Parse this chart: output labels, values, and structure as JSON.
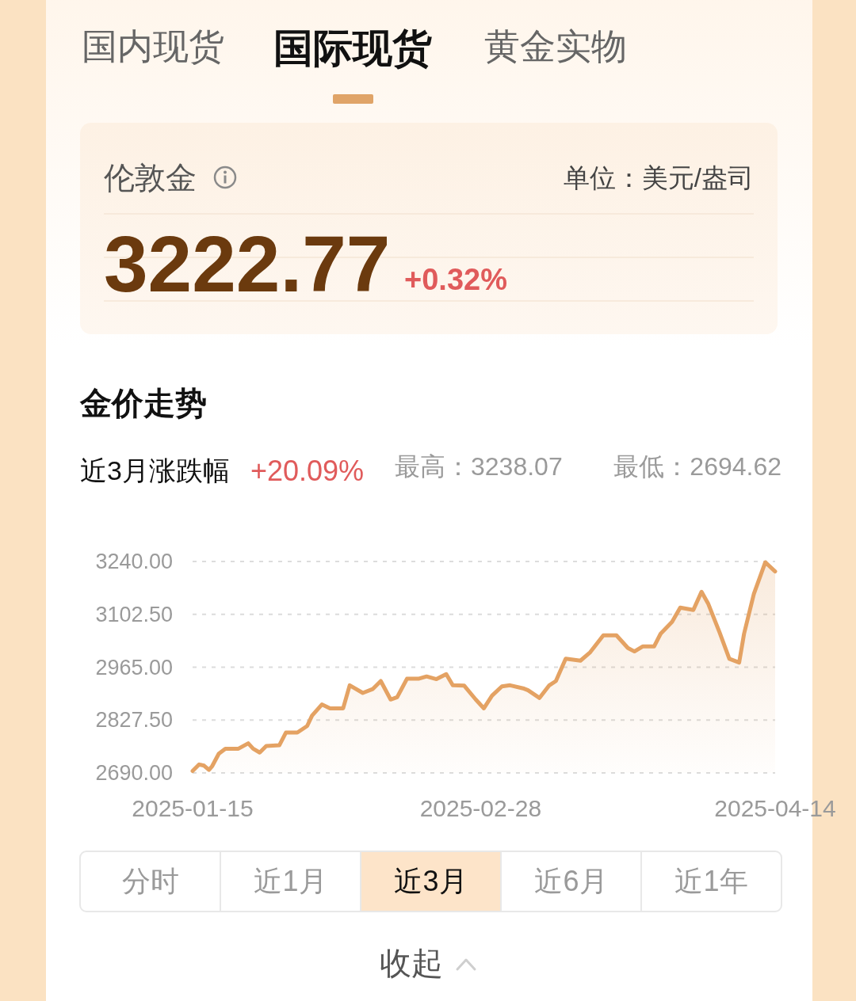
{
  "chart_data": {
    "type": "area",
    "title": "金价走势",
    "x": [
      "2025-01-15T00:00",
      "2025-01-16T00:00",
      "2025-01-16T18:00",
      "2025-01-17T12:00",
      "2025-01-18T00:00",
      "2025-01-19T00:00",
      "2025-01-20T00:00",
      "2025-01-22T00:00",
      "2025-01-23T12:00",
      "2025-01-24T06:00",
      "2025-01-25T06:00",
      "2025-01-26T06:00",
      "2025-01-28T06:00",
      "2025-01-29T06:00",
      "2025-01-31T00:00",
      "2025-02-01T12:00",
      "2025-02-02T06:00",
      "2025-02-03T18:00",
      "2025-02-05T00:00",
      "2025-02-07T00:00",
      "2025-02-08T00:00",
      "2025-02-10T00:00",
      "2025-02-11T12:00",
      "2025-02-12T18:00",
      "2025-02-14T06:00",
      "2025-02-15T06:00",
      "2025-02-16T18:00",
      "2025-02-18T12:00",
      "2025-02-19T18:00",
      "2025-02-21T06:00",
      "2025-02-22T18:00",
      "2025-02-23T18:00",
      "2025-02-25T12:00",
      "2025-02-27T06:00",
      "2025-02-28T12:00",
      "2025-03-01T18:00",
      "2025-03-03T06:00",
      "2025-03-04T12:00",
      "2025-03-06T12:00",
      "2025-03-07T06:00",
      "2025-03-09T00:00",
      "2025-03-10T12:00",
      "2025-03-11T12:00",
      "2025-03-13T00:00",
      "2025-03-15T06:00",
      "2025-03-16T18:00",
      "2025-03-18T18:00",
      "2025-03-20T18:00",
      "2025-03-22T12:00",
      "2025-03-23T12:00",
      "2025-03-24T18:00",
      "2025-03-26T12:00",
      "2025-03-27T12:00",
      "2025-03-29T06:00",
      "2025-03-30T12:00",
      "2025-04-01T12:00",
      "2025-04-02T18:00",
      "2025-04-03T18:00",
      "2025-04-05T12:00",
      "2025-04-07T00:00",
      "2025-04-08T12:00",
      "2025-04-09T06:00",
      "2025-04-10T18:00",
      "2025-04-12T12:00",
      "2025-04-14T00:00"
    ],
    "values": [
      2695,
      2712,
      2709,
      2698,
      2708,
      2740,
      2753,
      2753,
      2767,
      2753,
      2743,
      2760,
      2762,
      2795,
      2795,
      2812,
      2839,
      2868,
      2858,
      2858,
      2918,
      2898,
      2908,
      2929,
      2881,
      2887,
      2935,
      2935,
      2941,
      2934,
      2947,
      2918,
      2917,
      2881,
      2858,
      2891,
      2915,
      2918,
      2910,
      2905,
      2885,
      2918,
      2929,
      2987,
      2982,
      3004,
      3048,
      3048,
      3015,
      3006,
      3019,
      3019,
      3052,
      3083,
      3120,
      3114,
      3161,
      3131,
      3056,
      2987,
      2977,
      3052,
      3156,
      3238,
      3214
    ],
    "color": "#e4a263",
    "xlim": [
      "2025-01-15",
      "2025-04-14"
    ],
    "xticks": [
      "2025-01-15",
      "2025-02-28",
      "2025-04-14"
    ],
    "ylim": [
      2690,
      3240
    ],
    "yticks": [
      {
        "value": 2690,
        "label": "2690.00"
      },
      {
        "value": 2827.5,
        "label": "2827.50"
      },
      {
        "value": 2965,
        "label": "2965.00"
      },
      {
        "value": 3102.5,
        "label": "3102.50"
      },
      {
        "value": 3240,
        "label": "3240.00"
      }
    ],
    "grid": "y",
    "annotations": [
      "国内现货",
      "国际现货",
      "黄金实物",
      "伦敦金",
      "单位：美元/盎司",
      "3222.77",
      "+0.32%",
      "近3月涨跌幅",
      "+20.09%",
      "最高：3238.07",
      "最低：2694.62",
      "分时",
      "近1月",
      "近3月",
      "近6月",
      "近1年",
      "收起"
    ]
  }
}
